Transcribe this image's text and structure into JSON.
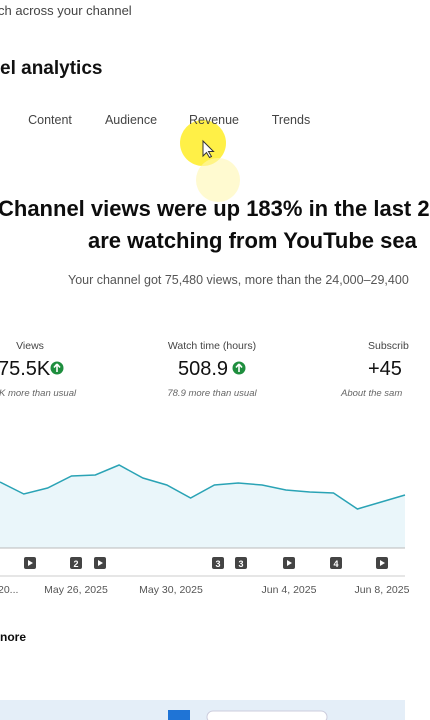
{
  "header": {
    "subtitle": "ch across your channel",
    "title": "el analytics"
  },
  "tabs": [
    "Content",
    "Audience",
    "Revenue",
    "Trends"
  ],
  "headline": {
    "line1": "Channel views were up 183% in the last 2",
    "line2": "are watching from YouTube sea"
  },
  "summary": "Your channel got 75,480 views, more than the 24,000–29,400",
  "metrics": [
    {
      "label": "Views",
      "value": "75.5K",
      "note": "K more than usual"
    },
    {
      "label": "Watch time (hours)",
      "value": "508.9",
      "note": "78.9 more than usual"
    },
    {
      "label": "Subscrib",
      "value": "+45",
      "note": "About the sam"
    }
  ],
  "chart": {
    "type": "area",
    "color": "#2aa3b5",
    "values": [
      66,
      54,
      60,
      72,
      73,
      83,
      70,
      63,
      50,
      63,
      65,
      63,
      58,
      56,
      55,
      39,
      46,
      53
    ],
    "ylim": [
      0,
      100
    ],
    "markers": [
      null,
      "2",
      null,
      "3",
      "3",
      null,
      "4",
      null
    ],
    "dates": [
      "20...",
      "May 26, 2025",
      "May 30, 2025",
      "Jun 4, 2025",
      "Jun 8, 2025"
    ]
  },
  "more": "nore"
}
